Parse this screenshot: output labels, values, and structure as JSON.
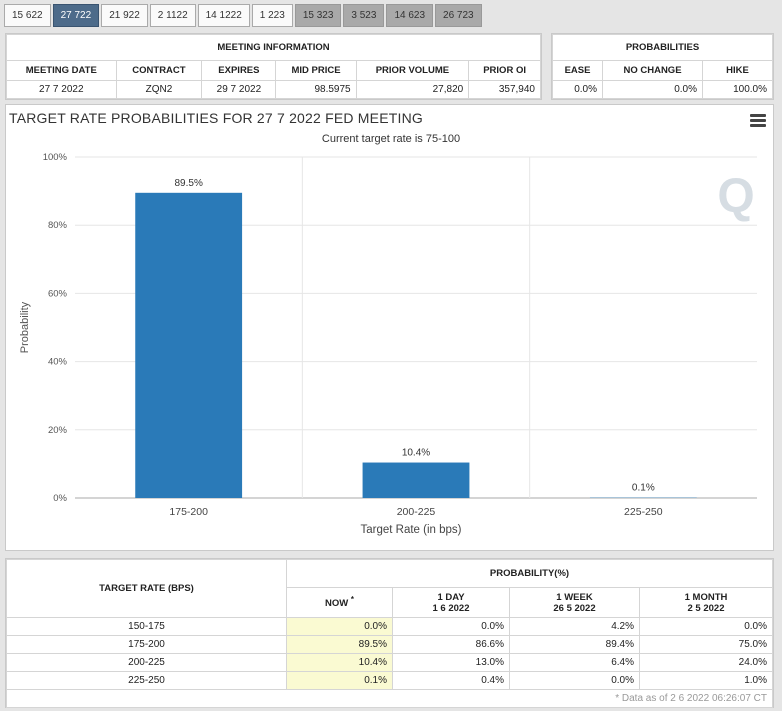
{
  "tabs": [
    "15 622",
    "27 722",
    "21 922",
    "2 1122",
    "14 1222",
    "1 223",
    "15 323",
    "3 523",
    "14 623",
    "26 723"
  ],
  "tabs_active_index": 1,
  "meeting_info": {
    "title": "MEETING INFORMATION",
    "headers": [
      "MEETING DATE",
      "CONTRACT",
      "EXPIRES",
      "MID PRICE",
      "PRIOR VOLUME",
      "PRIOR OI"
    ],
    "values": [
      "27 7 2022",
      "ZQN2",
      "29 7 2022",
      "98.5975",
      "27,820",
      "357,940"
    ]
  },
  "probabilities": {
    "title": "PROBABILITIES",
    "headers": [
      "EASE",
      "NO CHANGE",
      "HIKE"
    ],
    "values": [
      "0.0%",
      "0.0%",
      "100.0%"
    ]
  },
  "chart": {
    "title": "TARGET RATE PROBABILITIES FOR 27 7 2022 FED MEETING",
    "subtitle": "Current target rate is 75-100",
    "watermark": "Q"
  },
  "chart_data": {
    "type": "bar",
    "categories": [
      "175-200",
      "200-225",
      "225-250"
    ],
    "values": [
      89.5,
      10.4,
      0.1
    ],
    "data_labels": [
      "89.5%",
      "10.4%",
      "0.1%"
    ],
    "ylim": [
      0,
      100
    ],
    "yticks": [
      "0%",
      "20%",
      "40%",
      "60%",
      "80%",
      "100%"
    ],
    "xlabel": "Target Rate (in bps)",
    "ylabel": "Probability",
    "color": "#2a7ab8",
    "grid": true
  },
  "prob_table": {
    "target_header": "TARGET RATE (BPS)",
    "prob_header": "PROBABILITY(%)",
    "now_label": "NOW",
    "now_marker": "*",
    "col_headers": [
      {
        "label": "1 DAY",
        "date": "1 6 2022"
      },
      {
        "label": "1 WEEK",
        "date": "26 5 2022"
      },
      {
        "label": "1 MONTH",
        "date": "2 5 2022"
      }
    ],
    "rows": [
      {
        "rate": "150-175",
        "now": "0.0%",
        "day": "0.0%",
        "week": "4.2%",
        "month": "0.0%"
      },
      {
        "rate": "175-200",
        "now": "89.5%",
        "day": "86.6%",
        "week": "89.4%",
        "month": "75.0%"
      },
      {
        "rate": "200-225",
        "now": "10.4%",
        "day": "13.0%",
        "week": "6.4%",
        "month": "24.0%"
      },
      {
        "rate": "225-250",
        "now": "0.1%",
        "day": "0.4%",
        "week": "0.0%",
        "month": "1.0%"
      }
    ],
    "footnote": "* Data as of 2 6 2022 06:26:07 CT"
  }
}
